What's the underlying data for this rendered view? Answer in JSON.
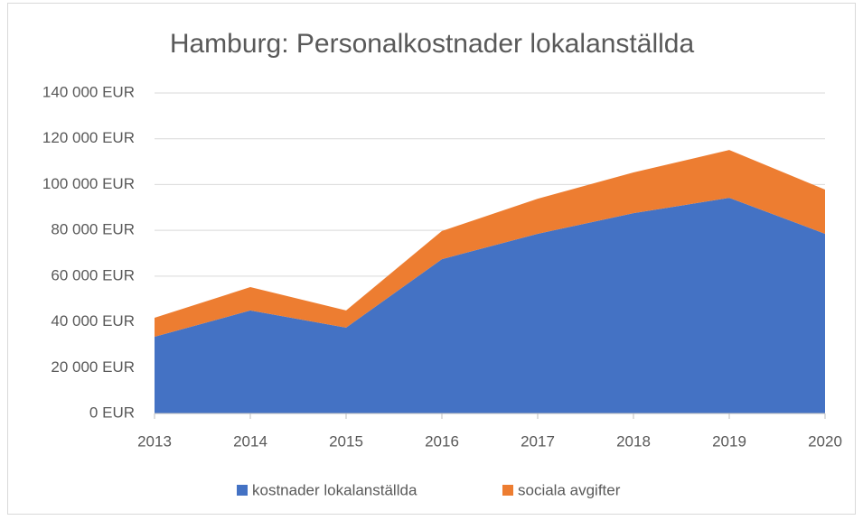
{
  "chart_data": {
    "type": "area",
    "title": "Hamburg: Personalkostnader lokalanställda",
    "categories": [
      "2013",
      "2014",
      "2015",
      "2016",
      "2017",
      "2018",
      "2019",
      "2020"
    ],
    "series": [
      {
        "name": "kostnader lokalanställda",
        "color": "#4472c4",
        "values": [
          33500,
          45000,
          37500,
          67400,
          78500,
          87500,
          94200,
          78500
        ]
      },
      {
        "name": "sociala avgifter",
        "color": "#ed7d31",
        "values": [
          8300,
          10200,
          7500,
          12300,
          15300,
          17800,
          20900,
          19300
        ]
      }
    ],
    "stacked": true,
    "ylim": [
      0,
      140000
    ],
    "yticks": [
      {
        "value": 0,
        "label": "0 EUR"
      },
      {
        "value": 20000,
        "label": "20 000 EUR"
      },
      {
        "value": 40000,
        "label": "40 000 EUR"
      },
      {
        "value": 60000,
        "label": "60 000 EUR"
      },
      {
        "value": 80000,
        "label": "80 000 EUR"
      },
      {
        "value": 100000,
        "label": "100 000 EUR"
      },
      {
        "value": 120000,
        "label": "120 000 EUR"
      },
      {
        "value": 140000,
        "label": "140 000 EUR"
      }
    ],
    "grid": true,
    "legend": "bottom"
  }
}
